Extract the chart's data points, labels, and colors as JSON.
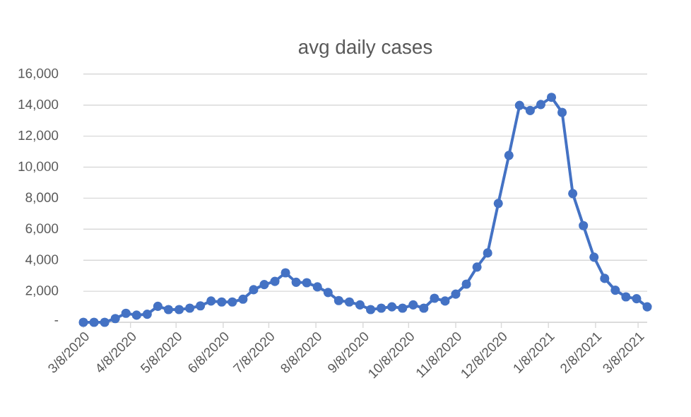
{
  "chart_data": {
    "type": "line",
    "title": "avg daily cases",
    "x": [
      "2020-03-08",
      "2020-03-15",
      "2020-03-22",
      "2020-03-29",
      "2020-04-05",
      "2020-04-12",
      "2020-04-19",
      "2020-04-26",
      "2020-05-03",
      "2020-05-10",
      "2020-05-17",
      "2020-05-24",
      "2020-05-31",
      "2020-06-07",
      "2020-06-14",
      "2020-06-21",
      "2020-06-28",
      "2020-07-05",
      "2020-07-12",
      "2020-07-19",
      "2020-07-26",
      "2020-08-02",
      "2020-08-09",
      "2020-08-16",
      "2020-08-23",
      "2020-08-30",
      "2020-09-06",
      "2020-09-13",
      "2020-09-20",
      "2020-09-27",
      "2020-10-04",
      "2020-10-11",
      "2020-10-18",
      "2020-10-25",
      "2020-11-01",
      "2020-11-08",
      "2020-11-15",
      "2020-11-22",
      "2020-11-29",
      "2020-12-06",
      "2020-12-13",
      "2020-12-20",
      "2020-12-27",
      "2021-01-03",
      "2021-01-10",
      "2021-01-17",
      "2021-01-24",
      "2021-01-31",
      "2021-02-07",
      "2021-02-14",
      "2021-02-21",
      "2021-02-28",
      "2021-03-07",
      "2021-03-14"
    ],
    "series": [
      {
        "color": "#4472c4",
        "values": [
          0,
          0,
          0,
          240,
          580,
          460,
          520,
          1030,
          820,
          820,
          910,
          1060,
          1370,
          1310,
          1310,
          1490,
          2100,
          2430,
          2640,
          3190,
          2580,
          2550,
          2280,
          1920,
          1400,
          1310,
          1120,
          820,
          910,
          1000,
          910,
          1120,
          910,
          1550,
          1370,
          1820,
          2460,
          3560,
          4470,
          7660,
          10760,
          13980,
          13650,
          14040,
          14500,
          13530,
          8300,
          6230,
          4200,
          2830,
          2070,
          1640,
          1520,
          1000
        ]
      }
    ],
    "xlim": [
      "2020-03-08",
      "2021-03-14"
    ],
    "xticks": [
      {
        "value": "2020-03-08",
        "label": "3/8/2020"
      },
      {
        "value": "2020-04-08",
        "label": "4/8/2020"
      },
      {
        "value": "2020-05-08",
        "label": "5/8/2020"
      },
      {
        "value": "2020-06-08",
        "label": "6/8/2020"
      },
      {
        "value": "2020-07-08",
        "label": "7/8/2020"
      },
      {
        "value": "2020-08-08",
        "label": "8/8/2020"
      },
      {
        "value": "2020-09-08",
        "label": "9/8/2020"
      },
      {
        "value": "2020-10-08",
        "label": "10/8/2020"
      },
      {
        "value": "2020-11-08",
        "label": "11/8/2020"
      },
      {
        "value": "2020-12-08",
        "label": "12/8/2020"
      },
      {
        "value": "2021-01-08",
        "label": "1/8/2021"
      },
      {
        "value": "2021-02-08",
        "label": "2/8/2021"
      },
      {
        "value": "2021-03-08",
        "label": "3/8/2021"
      }
    ],
    "ylim": [
      0,
      16000
    ],
    "yticks": [
      {
        "value": 0,
        "label": "-"
      },
      {
        "value": 2000,
        "label": "2,000"
      },
      {
        "value": 4000,
        "label": "4,000"
      },
      {
        "value": 6000,
        "label": "6,000"
      },
      {
        "value": 8000,
        "label": "8,000"
      },
      {
        "value": 10000,
        "label": "10,000"
      },
      {
        "value": 12000,
        "label": "12,000"
      },
      {
        "value": 14000,
        "label": "14,000"
      },
      {
        "value": 16000,
        "label": "16,000"
      }
    ],
    "grid": "y",
    "marker": "circle",
    "line_style": "solid"
  }
}
